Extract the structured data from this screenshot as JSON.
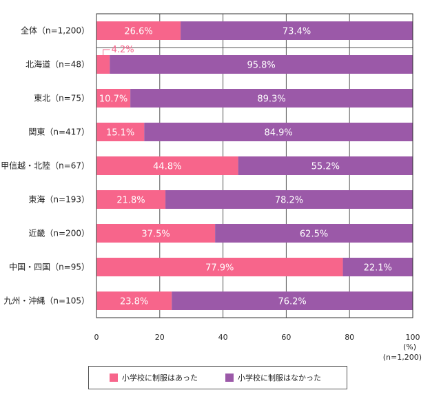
{
  "chart_data": {
    "type": "bar",
    "orientation": "horizontal",
    "stacked": true,
    "categories": [
      "全体（n=1,200）",
      "北海道（n=48）",
      "東北（n=75）",
      "関東（n=417）",
      "甲信越・北陸（n=67）",
      "東海（n=193）",
      "近畿（n=200）",
      "中国・四国（n=95）",
      "九州・沖縄（n=105）"
    ],
    "series": [
      {
        "name": "小学校に制服はあった",
        "color": "#f7658b",
        "values": [
          26.6,
          4.2,
          10.7,
          15.1,
          44.8,
          21.8,
          37.5,
          77.9,
          23.8
        ],
        "labels": [
          "26.6%",
          "4.2%",
          "10.7%",
          "15.1%",
          "44.8%",
          "21.8%",
          "37.5%",
          "77.9%",
          "23.8%"
        ]
      },
      {
        "name": "小学校に制服はなかった",
        "color": "#9b59a8",
        "values": [
          73.4,
          95.8,
          89.3,
          84.9,
          55.2,
          78.2,
          62.5,
          22.1,
          76.2
        ],
        "labels": [
          "73.4%",
          "95.8%",
          "89.3%",
          "84.9%",
          "55.2%",
          "78.2%",
          "62.5%",
          "22.1%",
          "76.2%"
        ]
      }
    ],
    "xlim": [
      0,
      100
    ],
    "xticks": [
      "0",
      "20",
      "40",
      "60",
      "80",
      "100"
    ],
    "xunit": "(%)",
    "sample_note": "(n=1,200)",
    "grid": true,
    "legend_position": "bottom"
  }
}
